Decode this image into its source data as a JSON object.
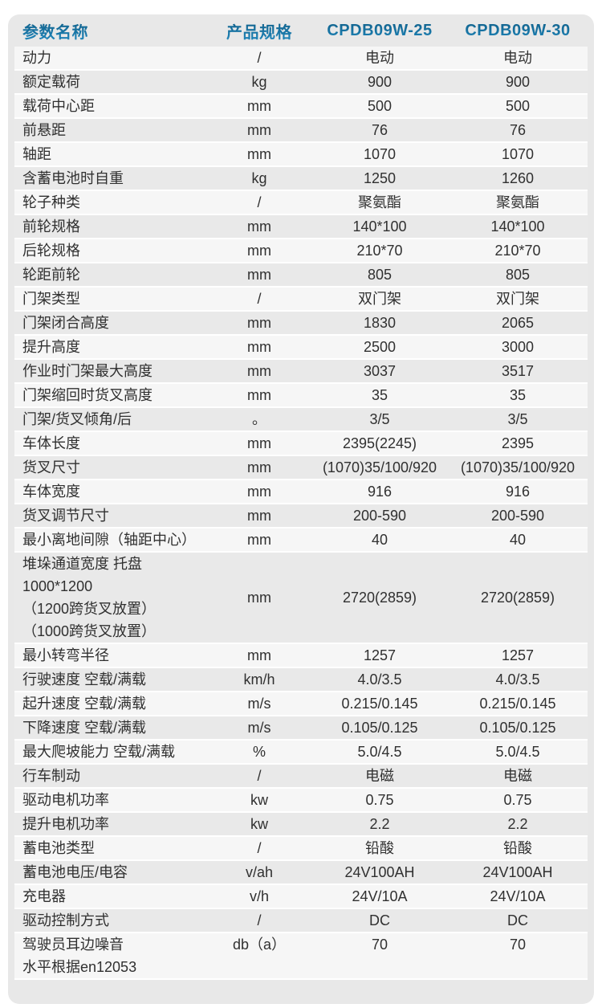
{
  "colors": {
    "header_text_top": "#0b5379",
    "header_text_bottom": "#2491c9",
    "row_light": "#f6f6f6",
    "row_gray": "#e9e9e9",
    "body_text": "#303030",
    "separator": "#ffffff",
    "card_bg": "#e8e8e8",
    "page_bg": "#ffffff"
  },
  "table": {
    "headers": [
      "参数名称",
      "产品规格",
      "CPDB09W-25",
      "CPDB09W-30"
    ],
    "rows": [
      {
        "name": "动力",
        "unit": "/",
        "values": [
          "电动",
          "电动"
        ]
      },
      {
        "name": "额定载荷",
        "unit": "kg",
        "values": [
          "900",
          "900"
        ]
      },
      {
        "name": "载荷中心距",
        "unit": "mm",
        "values": [
          "500",
          "500"
        ]
      },
      {
        "name": "前悬距",
        "unit": "mm",
        "values": [
          "76",
          "76"
        ]
      },
      {
        "name": "轴距",
        "unit": "mm",
        "values": [
          "1070",
          "1070"
        ]
      },
      {
        "name": "含蓄电池时自重",
        "unit": "kg",
        "values": [
          "1250",
          "1260"
        ]
      },
      {
        "name": "轮子种类",
        "unit": "/",
        "values": [
          "聚氨酯",
          "聚氨酯"
        ]
      },
      {
        "name": "前轮规格",
        "unit": "mm",
        "values": [
          "140*100",
          "140*100"
        ]
      },
      {
        "name": "后轮规格",
        "unit": "mm",
        "values": [
          "210*70",
          "210*70"
        ]
      },
      {
        "name": "轮距前轮",
        "unit": "mm",
        "values": [
          "805",
          "805"
        ]
      },
      {
        "name": "门架类型",
        "unit": "/",
        "values": [
          "双门架",
          "双门架"
        ]
      },
      {
        "name": "门架闭合高度",
        "unit": "mm",
        "values": [
          "1830",
          "2065"
        ]
      },
      {
        "name": "提升高度",
        "unit": "mm",
        "values": [
          "2500",
          "3000"
        ]
      },
      {
        "name": "作业时门架最大高度",
        "unit": "mm",
        "values": [
          "3037",
          "3517"
        ]
      },
      {
        "name": "门架缩回时货叉高度",
        "unit": "mm",
        "values": [
          "35",
          "35"
        ]
      },
      {
        "name": "门架/货叉倾角/后",
        "unit": "。",
        "values": [
          "3/5",
          "3/5"
        ]
      },
      {
        "name": "车体长度",
        "unit": "mm",
        "values": [
          "2395(2245)",
          "2395"
        ]
      },
      {
        "name": "货叉尺寸",
        "unit": "mm",
        "values": [
          "(1070)35/100/920",
          "(1070)35/100/920"
        ]
      },
      {
        "name": "车体宽度",
        "unit": "mm",
        "values": [
          "916",
          "916"
        ]
      },
      {
        "name": "货叉调节尺寸",
        "unit": "mm",
        "values": [
          "200-590",
          "200-590"
        ]
      },
      {
        "name": "最小离地间隙（轴距中心）",
        "unit": "mm",
        "values": [
          "40",
          "40"
        ]
      },
      {
        "name": "堆垛通道宽度 托盘1000*1200\n（1200跨货叉放置）\n（1000跨货叉放置）",
        "unit": "mm",
        "values": [
          "2720(2859)",
          "2720(2859)"
        ]
      },
      {
        "name": "最小转弯半径",
        "unit": "mm",
        "values": [
          "1257",
          "1257"
        ]
      },
      {
        "name": "行驶速度 空载/满载",
        "unit": "km/h",
        "values": [
          "4.0/3.5",
          "4.0/3.5"
        ]
      },
      {
        "name": "起升速度 空载/满载",
        "unit": "m/s",
        "values": [
          "0.215/0.145",
          "0.215/0.145"
        ]
      },
      {
        "name": "下降速度 空载/满载",
        "unit": "m/s",
        "values": [
          "0.105/0.125",
          "0.105/0.125"
        ]
      },
      {
        "name": "最大爬坡能力 空载/满载",
        "unit": "%",
        "values": [
          "5.0/4.5",
          "5.0/4.5"
        ]
      },
      {
        "name": "行车制动",
        "unit": "/",
        "values": [
          "电磁",
          "电磁"
        ]
      },
      {
        "name": "驱动电机功率",
        "unit": "kw",
        "values": [
          "0.75",
          "0.75"
        ]
      },
      {
        "name": "提升电机功率",
        "unit": "kw",
        "values": [
          "2.2",
          "2.2"
        ]
      },
      {
        "name": "蓄电池类型",
        "unit": "/",
        "values": [
          "铅酸",
          "铅酸"
        ]
      },
      {
        "name": "蓄电池电压/电容",
        "unit": "v/ah",
        "values": [
          "24V100AH",
          "24V100AH"
        ]
      },
      {
        "name": "充电器",
        "unit": "v/h",
        "values": [
          "24V/10A",
          "24V/10A"
        ]
      },
      {
        "name": "驱动控制方式",
        "unit": "/",
        "values": [
          "DC",
          "DC"
        ]
      },
      {
        "name": "驾驶员耳边噪音\n水平根据en12053",
        "unit": "db（a）",
        "values": [
          "70",
          "70"
        ]
      }
    ]
  }
}
